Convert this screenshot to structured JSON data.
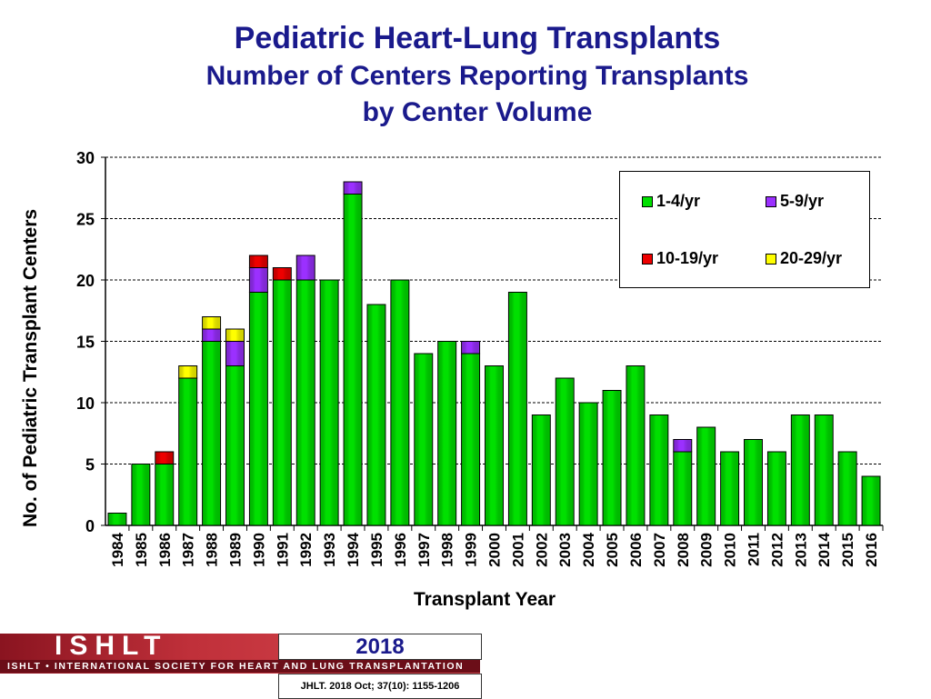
{
  "title": "Pediatric Heart-Lung Transplants",
  "subtitle1": "Number of Centers Reporting Transplants",
  "subtitle2": "by Center Volume",
  "chart_data": {
    "type": "bar",
    "stacked": true,
    "xlabel": "Transplant Year",
    "ylabel": "No. of Pediatric Transplant Centers",
    "ylim": [
      0,
      30
    ],
    "yticks": [
      0,
      5,
      10,
      15,
      20,
      25,
      30
    ],
    "grid": true,
    "legend_position": "top-right",
    "categories": [
      "1984",
      "1985",
      "1986",
      "1987",
      "1988",
      "1989",
      "1990",
      "1991",
      "1992",
      "1993",
      "1994",
      "1995",
      "1996",
      "1997",
      "1998",
      "1999",
      "2000",
      "2001",
      "2002",
      "2003",
      "2004",
      "2005",
      "2006",
      "2007",
      "2008",
      "2009",
      "2010",
      "2011",
      "2012",
      "2013",
      "2014",
      "2015",
      "2016"
    ],
    "series": [
      {
        "name": "1-4/yr",
        "color": "#00e000",
        "values": [
          1,
          5,
          5,
          12,
          15,
          13,
          19,
          20,
          20,
          20,
          27,
          18,
          20,
          14,
          15,
          14,
          13,
          19,
          9,
          12,
          10,
          11,
          13,
          9,
          6,
          8,
          6,
          7,
          6,
          9,
          9,
          6,
          4
        ]
      },
      {
        "name": "5-9/yr",
        "color": "#9b30ff",
        "values": [
          0,
          0,
          0,
          0,
          1,
          2,
          2,
          0,
          2,
          0,
          1,
          0,
          0,
          0,
          0,
          1,
          0,
          0,
          0,
          0,
          0,
          0,
          0,
          0,
          1,
          0,
          0,
          0,
          0,
          0,
          0,
          0,
          0
        ]
      },
      {
        "name": "10-19/yr",
        "color": "#ee0000",
        "values": [
          0,
          0,
          1,
          0,
          0,
          0,
          1,
          1,
          0,
          0,
          0,
          0,
          0,
          0,
          0,
          0,
          0,
          0,
          0,
          0,
          0,
          0,
          0,
          0,
          0,
          0,
          0,
          0,
          0,
          0,
          0,
          0,
          0
        ]
      },
      {
        "name": "20-29/yr",
        "color": "#ffff00",
        "values": [
          0,
          0,
          0,
          1,
          1,
          1,
          0,
          0,
          0,
          0,
          0,
          0,
          0,
          0,
          0,
          0,
          0,
          0,
          0,
          0,
          0,
          0,
          0,
          0,
          0,
          0,
          0,
          0,
          0,
          0,
          0,
          0,
          0
        ]
      }
    ]
  },
  "footer": {
    "logo_text": "ISHLT",
    "logo_band": "ISHLT • INTERNATIONAL SOCIETY FOR HEART AND LUNG TRANSPLANTATION",
    "year": "2018",
    "citation": "JHLT. 2018 Oct; 37(10): 1155-1206"
  }
}
